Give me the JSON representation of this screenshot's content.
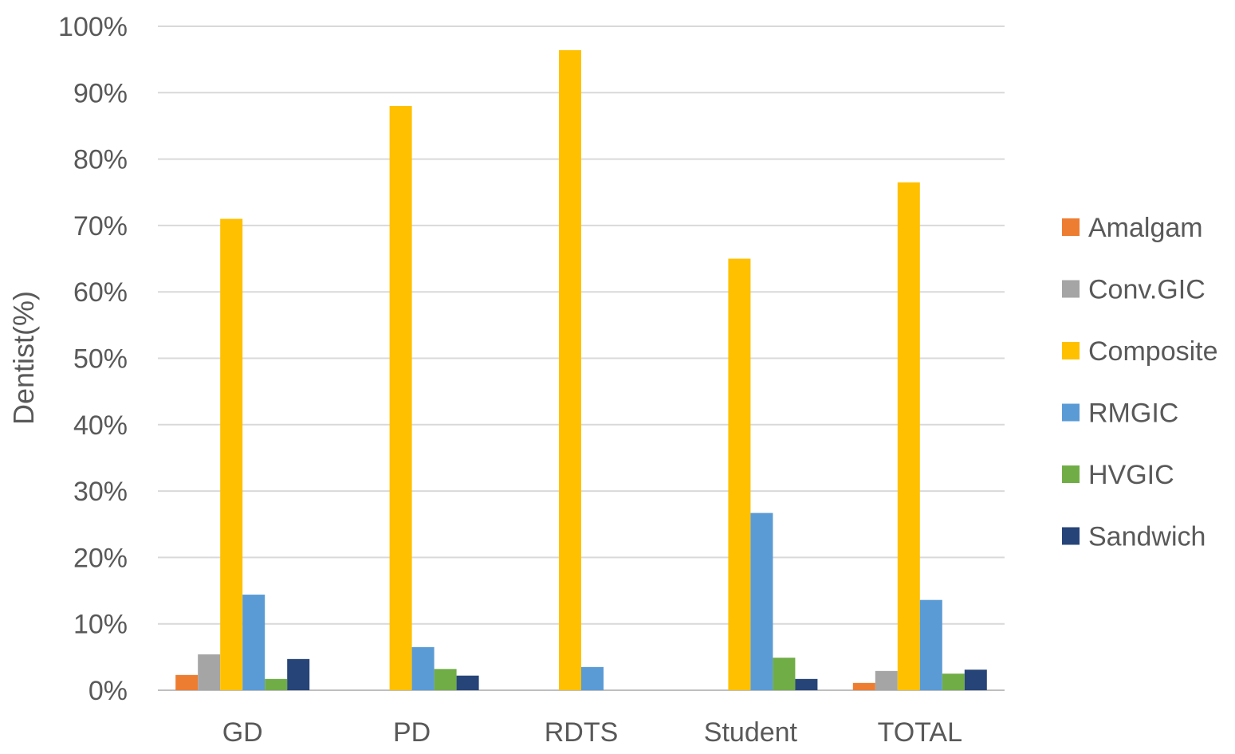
{
  "chart_data": {
    "type": "bar",
    "title": "",
    "xlabel": "",
    "ylabel": "Dentist(%)",
    "ylim": [
      0,
      100
    ],
    "ytick_step": 10,
    "ytick_suffix": "%",
    "grid": true,
    "legend_position": "right",
    "categories": [
      "GD",
      "PD",
      "RDTS",
      "Student",
      "TOTAL"
    ],
    "series": [
      {
        "name": "Amalgam",
        "color": "#ED7D31",
        "values": [
          2.3,
          0,
          0,
          0,
          1.1
        ]
      },
      {
        "name": "Conv.GIC",
        "color": "#A5A5A5",
        "values": [
          5.4,
          0,
          0,
          0,
          2.9
        ]
      },
      {
        "name": "Composite",
        "color": "#FFC000",
        "values": [
          71.0,
          88.0,
          96.4,
          65.0,
          76.5
        ]
      },
      {
        "name": "RMGIC",
        "color": "#5B9BD5",
        "values": [
          14.4,
          6.5,
          3.5,
          26.7,
          13.6
        ]
      },
      {
        "name": "HVGIC",
        "color": "#70AD47",
        "values": [
          1.7,
          3.2,
          0,
          4.9,
          2.5
        ]
      },
      {
        "name": "Sandwich",
        "color": "#264478",
        "values": [
          4.7,
          2.2,
          0,
          1.7,
          3.1
        ]
      }
    ]
  }
}
